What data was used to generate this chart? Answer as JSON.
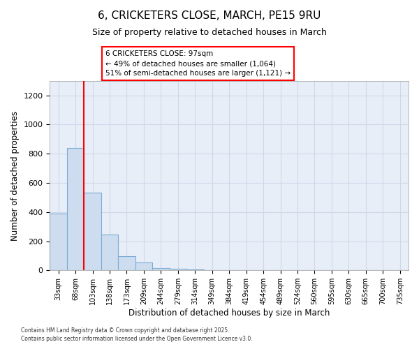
{
  "title_line1": "6, CRICKETERS CLOSE, MARCH, PE15 9RU",
  "title_line2": "Size of property relative to detached houses in March",
  "xlabel": "Distribution of detached houses by size in March",
  "ylabel": "Number of detached properties",
  "bar_color": "#cddcee",
  "bar_edge_color": "#7aadd4",
  "plot_bg_color": "#e8eef8",
  "fig_bg_color": "#ffffff",
  "grid_color": "#d0d8e8",
  "categories": [
    "33sqm",
    "68sqm",
    "103sqm",
    "138sqm",
    "173sqm",
    "209sqm",
    "244sqm",
    "279sqm",
    "314sqm",
    "349sqm",
    "384sqm",
    "419sqm",
    "454sqm",
    "489sqm",
    "524sqm",
    "560sqm",
    "595sqm",
    "630sqm",
    "665sqm",
    "700sqm",
    "735sqm"
  ],
  "values": [
    390,
    840,
    535,
    248,
    95,
    55,
    18,
    13,
    8,
    0,
    0,
    0,
    0,
    0,
    0,
    0,
    0,
    0,
    0,
    0,
    0
  ],
  "ylim": [
    0,
    1300
  ],
  "yticks": [
    0,
    200,
    400,
    600,
    800,
    1000,
    1200
  ],
  "red_line_x": 1.5,
  "annotation_line1": "6 CRICKETERS CLOSE: 97sqm",
  "annotation_line2": "← 49% of detached houses are smaller (1,064)",
  "annotation_line3": "51% of semi-detached houses are larger (1,121) →",
  "footer_line1": "Contains HM Land Registry data © Crown copyright and database right 2025.",
  "footer_line2": "Contains public sector information licensed under the Open Government Licence v3.0."
}
